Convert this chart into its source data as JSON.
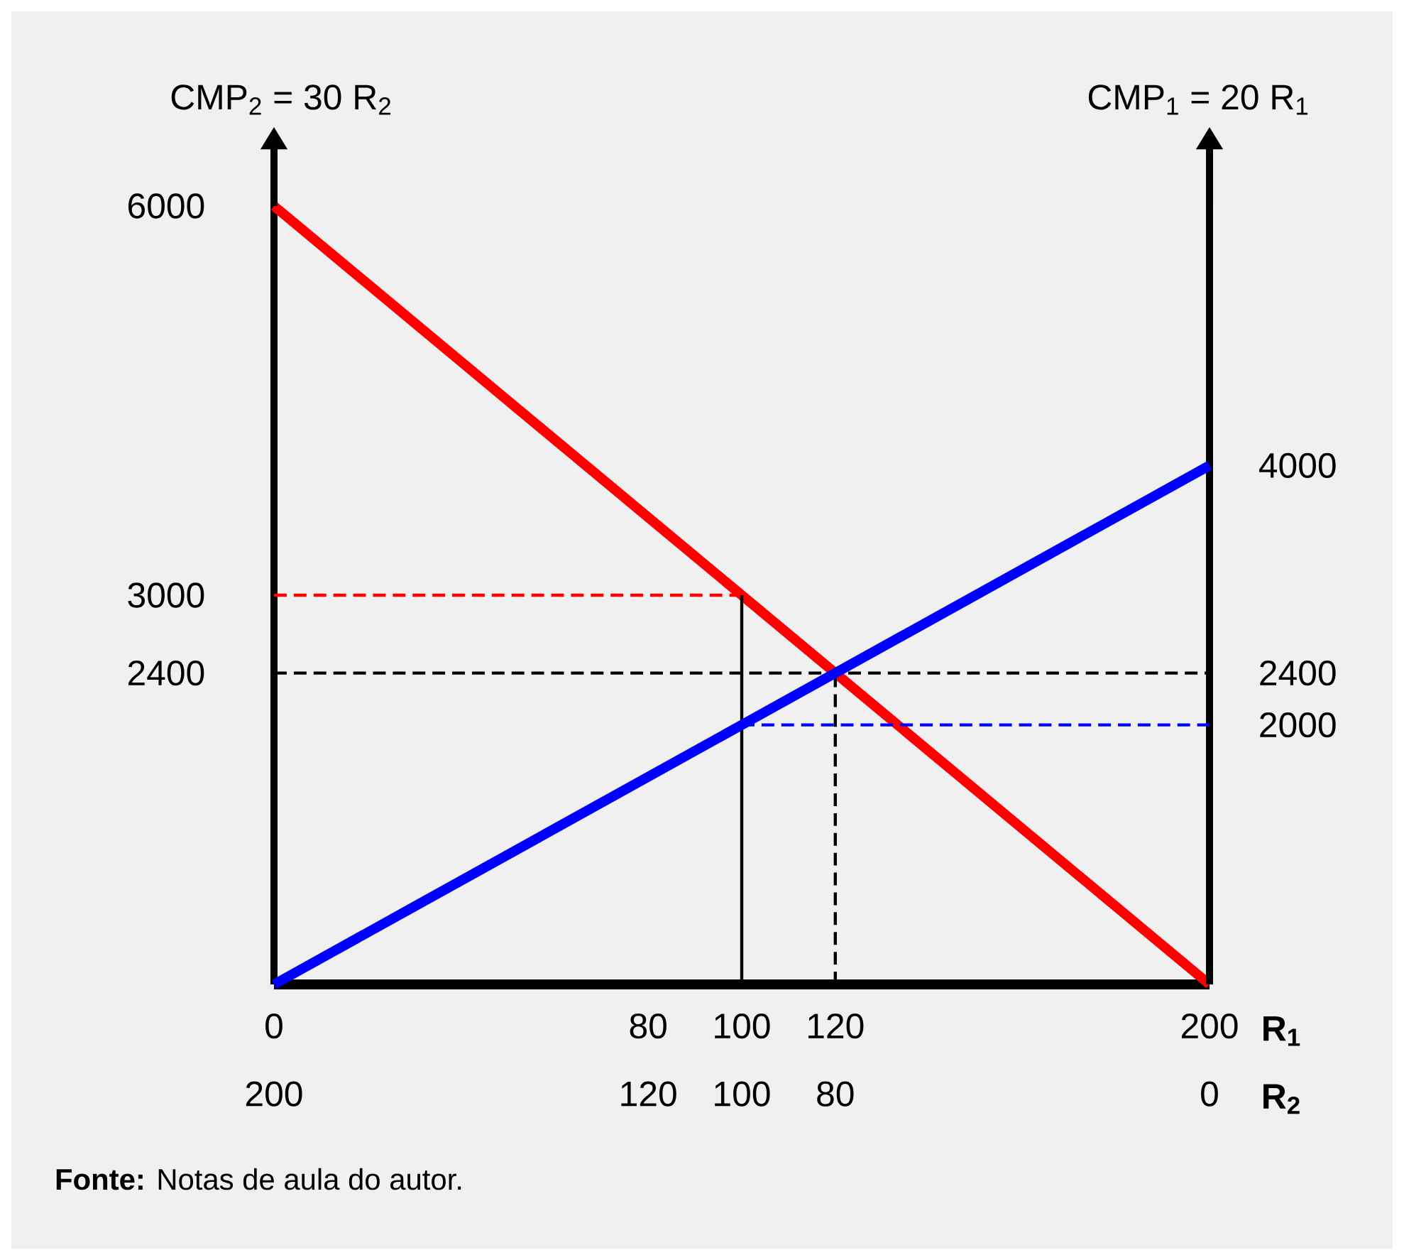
{
  "chart_data": {
    "type": "line",
    "ylabel": "CMP$_{2}$ = 30 R$_{2}$",
    "y2label": "CMP$_{1}$ = 20 R$_{1}$",
    "xlabel": "R$_{1}$",
    "x2label": "R$_{2}$",
    "xlim": [
      0,
      200
    ],
    "xticks": [
      0,
      80,
      100,
      120,
      200
    ],
    "x2lim": [
      200,
      0
    ],
    "x2ticks": [
      200,
      120,
      100,
      80,
      0
    ],
    "ylim": [
      0,
      6000
    ],
    "yticks": [
      6000,
      3000,
      2400
    ],
    "y2lim": [
      0,
      6000
    ],
    "y2ticks": [
      4000,
      2400,
      2000
    ],
    "grid": false,
    "marker": "none",
    "series": [
      {
        "color": "#ff0000",
        "x": [
          0,
          200
        ],
        "values": [
          6000,
          0
        ],
        "line_style": "solid"
      },
      {
        "color": "#0000ff",
        "x": [
          0,
          200
        ],
        "values": [
          0,
          4000
        ],
        "axis": "y2",
        "line_style": "solid"
      },
      {
        "color": "#ff0000",
        "x": [
          0,
          100
        ],
        "values": [
          3000,
          3000
        ],
        "line_style": "dashed"
      },
      {
        "color": "#000000",
        "x": [
          100,
          100
        ],
        "values": [
          0,
          3000
        ],
        "line_style": "solid"
      },
      {
        "color": "#000000",
        "x": [
          120,
          120
        ],
        "values": [
          0,
          2400
        ],
        "line_style": "dashed"
      },
      {
        "color": "#0000ff",
        "x": [
          100,
          200
        ],
        "values": [
          2000,
          2000
        ],
        "axis": "y2",
        "line_style": "dashed"
      }
    ],
    "ref_lines": [
      {
        "axis": "y",
        "value": 2400,
        "color": "#000000",
        "line_style": "dashed"
      }
    ],
    "annotations": [
      "**Fonte:** Notas de aula do autor."
    ]
  }
}
